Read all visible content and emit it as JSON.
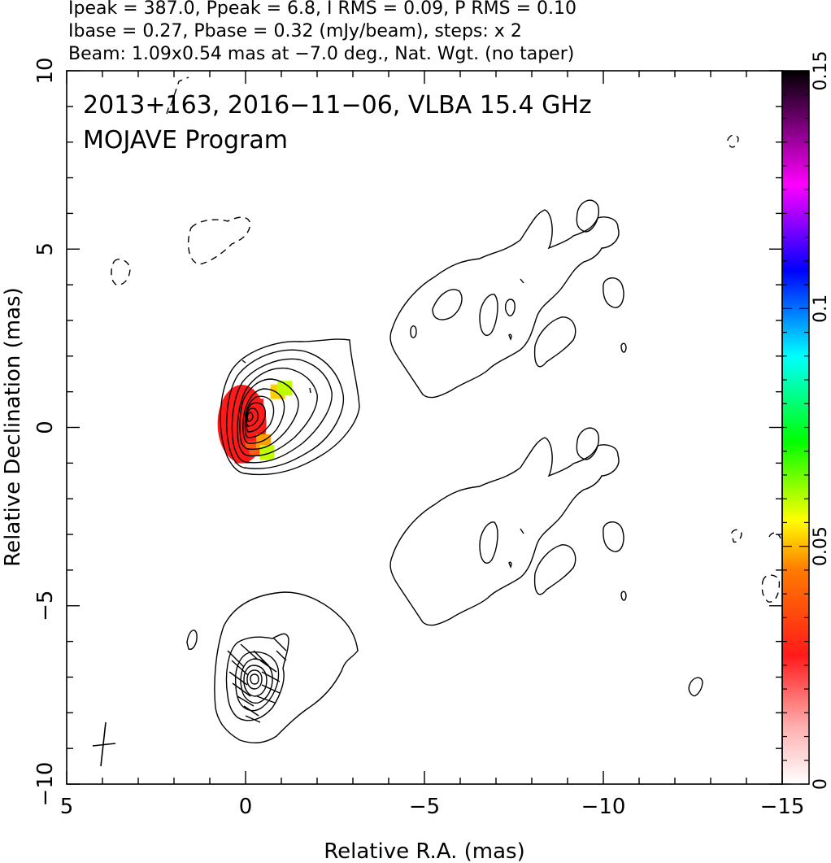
{
  "header": {
    "line1": "Ipeak = 387.0, Ppeak = 6.8, I RMS = 0.09, P RMS = 0.10",
    "line2": "Ibase = 0.27, Pbase = 0.32 (mJy/beam), steps: x 2",
    "line3": "Beam: 1.09x0.54 mas at −7.0 deg., Nat. Wgt. (no taper)"
  },
  "plot": {
    "title_line1": "2013+163, 2016−11−06, VLBA 15.4 GHz",
    "title_line2": "MOJAVE Program"
  },
  "chart_data": {
    "type": "heatmap",
    "xlabel": "Relative R.A. (mas)",
    "ylabel": "Relative Declination (mas)",
    "xlim": [
      5,
      -15
    ],
    "ylim": [
      -10,
      10
    ],
    "x_ticks": [
      {
        "v": 5,
        "label": "5"
      },
      {
        "v": 0,
        "label": "0"
      },
      {
        "v": -5,
        "label": "−5"
      },
      {
        "v": -10,
        "label": "−10"
      },
      {
        "v": -15,
        "label": "−15"
      }
    ],
    "y_ticks": [
      {
        "v": 10,
        "label": "10"
      },
      {
        "v": 5,
        "label": "5"
      },
      {
        "v": 0,
        "label": "0"
      },
      {
        "v": -5,
        "label": "−5"
      },
      {
        "v": -10,
        "label": "−10"
      }
    ],
    "colorbar": {
      "min": 0,
      "max": 0.15,
      "ticks": [
        {
          "v": 0,
          "label": "0"
        },
        {
          "v": 0.05,
          "label": "0.05"
        },
        {
          "v": 0.1,
          "label": "0.1"
        },
        {
          "v": 0.15,
          "label": "0.15"
        }
      ],
      "stops": [
        "#ffffff",
        "#ff1a1a",
        "#ff7a00",
        "#ffff00",
        "#00ff00",
        "#00ffff",
        "#0000ff",
        "#ff00ff",
        "#000000"
      ]
    },
    "beam": {
      "major": 1.09,
      "minor": 0.54,
      "pa_deg": -7.0
    },
    "upper_panel": {
      "center": [
        0,
        0
      ],
      "contour_levels": 10,
      "fractional_polarization_pixels": [
        {
          "x": 0.2,
          "y": 0.6,
          "v": 0.02
        },
        {
          "x": 0.0,
          "y": 0.3,
          "v": 0.02
        },
        {
          "x": -0.2,
          "y": 0.1,
          "v": 0.02
        },
        {
          "x": 0.2,
          "y": -0.2,
          "v": 0.02
        },
        {
          "x": 0.0,
          "y": -0.4,
          "v": 0.025
        },
        {
          "x": -0.2,
          "y": -0.6,
          "v": 0.03
        },
        {
          "x": 0.1,
          "y": -0.8,
          "v": 0.02
        },
        {
          "x": -0.3,
          "y": 0.6,
          "v": 0.025
        },
        {
          "x": -0.5,
          "y": -0.4,
          "v": 0.05
        },
        {
          "x": -0.6,
          "y": -0.7,
          "v": 0.07
        },
        {
          "x": -0.9,
          "y": 1.0,
          "v": 0.055
        },
        {
          "x": -1.1,
          "y": 1.1,
          "v": 0.07
        }
      ]
    },
    "lower_panel": {
      "center": [
        -0.2,
        -7.0
      ]
    }
  },
  "colors": {
    "axis": "#000000",
    "contour": "#000000",
    "background": "#ffffff"
  }
}
